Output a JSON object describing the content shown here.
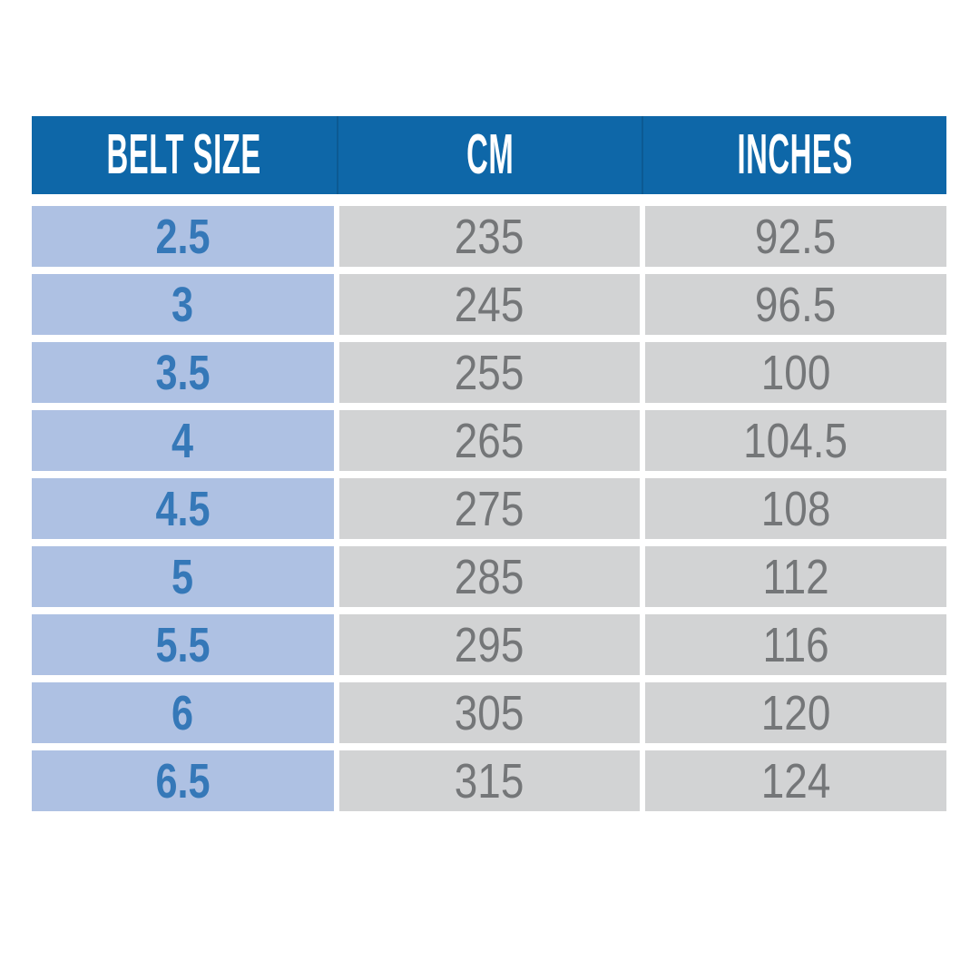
{
  "colors": {
    "header_bg": "#0e67a8",
    "header_text": "#ffffff",
    "size_col_bg": "#aec1e3",
    "size_col_text": "#3578b8",
    "value_col_bg": "#d2d3d4",
    "value_col_text": "#747678",
    "background": "#ffffff"
  },
  "chart_data": {
    "type": "table",
    "columns": [
      "BELT SIZE",
      "CM",
      "INCHES"
    ],
    "rows": [
      {
        "belt_size": "2.5",
        "cm": "235",
        "inches": "92.5"
      },
      {
        "belt_size": "3",
        "cm": "245",
        "inches": "96.5"
      },
      {
        "belt_size": "3.5",
        "cm": "255",
        "inches": "100"
      },
      {
        "belt_size": "4",
        "cm": "265",
        "inches": "104.5"
      },
      {
        "belt_size": "4.5",
        "cm": "275",
        "inches": "108"
      },
      {
        "belt_size": "5",
        "cm": "285",
        "inches": "112"
      },
      {
        "belt_size": "5.5",
        "cm": "295",
        "inches": "116"
      },
      {
        "belt_size": "6",
        "cm": "305",
        "inches": "120"
      },
      {
        "belt_size": "6.5",
        "cm": "315",
        "inches": "124"
      }
    ]
  }
}
